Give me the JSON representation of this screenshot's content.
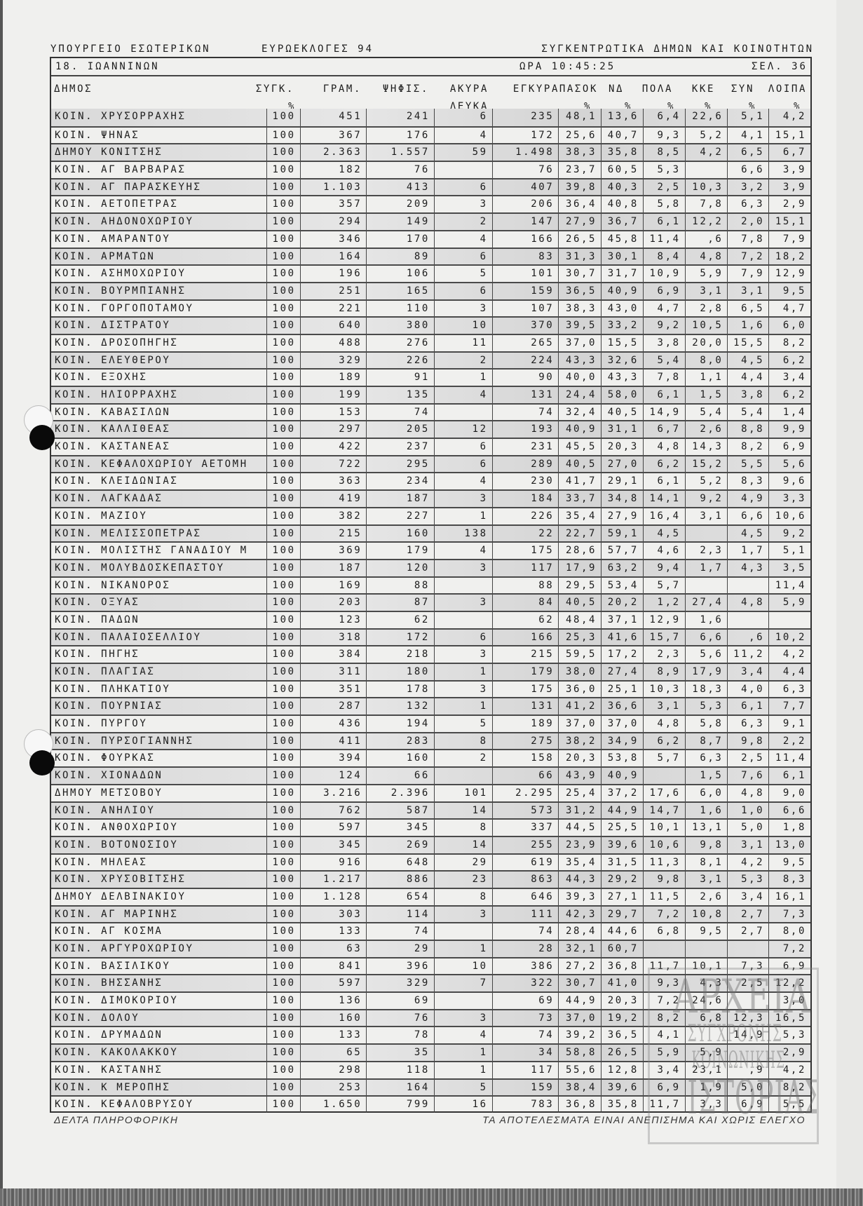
{
  "header": {
    "ministry": "ΥΠΟΥΡΓΕΙΟ ΕΣΩΤΕΡΙΚΩΝ",
    "election": "ΕΥΡΩΕΚΛΟΓΕΣ 94",
    "report": "ΣΥΓΚΕΝΤΡΩΤΙΚΑ ΔΗΜΩΝ ΚΑΙ ΚΟΙΝΟΤΗΤΩΝ"
  },
  "title_row": {
    "prefecture": "18.  ΙΩΑΝΝΙΝΩΝ",
    "time": "ΩΡΑ 10:45:25",
    "page": "ΣΕΛ.  36"
  },
  "columns": {
    "dimos": "ΔΗΜΟΣ",
    "sygk": "ΣΥΓΚ.",
    "sygk_unit": "%",
    "gram": "ΓΡΑΜ.",
    "psifis": "ΨΗΦΙΣ.",
    "akyra": "ΑΚΥΡΑ",
    "akyra_2": "ΛΕΥΚΑ",
    "egkyra": "ΕΓΚΥΡΑ",
    "pasok": "ΠΑΣΟΚ",
    "pasok_unit": "%",
    "nd": "ΝΔ",
    "nd_unit": "%",
    "pola": "ΠΟΛΑ",
    "pola_unit": "%",
    "kke": "ΚΚΕ",
    "kke_unit": "%",
    "syn": "ΣΥΝ",
    "syn_unit": "%",
    "loipa": "ΛΟΙΠΑ",
    "loipa_unit": "%"
  },
  "rows": [
    [
      "ΚΟΙΝ. ΧΡΥΣΟΡΡΑΧΗΣ",
      "100",
      "451",
      "241",
      "6",
      "235",
      "48,1",
      "13,6",
      "6,4",
      "22,6",
      "5,1",
      "4,2"
    ],
    [
      "ΚΟΙΝ. ΨΗΝΑΣ",
      "100",
      "367",
      "176",
      "4",
      "172",
      "25,6",
      "40,7",
      "9,3",
      "5,2",
      "4,1",
      "15,1"
    ],
    [
      "ΔΗΜΟΥ ΚΟΝΙΤΣΗΣ",
      "100",
      "2.363",
      "1.557",
      "59",
      "1.498",
      "38,3",
      "35,8",
      "8,5",
      "4,2",
      "6,5",
      "6,7"
    ],
    [
      "ΚΟΙΝ. ΑΓ ΒΑΡΒΑΡΑΣ",
      "100",
      "182",
      "76",
      "",
      "76",
      "23,7",
      "60,5",
      "5,3",
      "",
      "6,6",
      "3,9"
    ],
    [
      "ΚΟΙΝ. ΑΓ ΠΑΡΑΣΚΕΥΗΣ",
      "100",
      "1.103",
      "413",
      "6",
      "407",
      "39,8",
      "40,3",
      "2,5",
      "10,3",
      "3,2",
      "3,9"
    ],
    [
      "ΚΟΙΝ. ΑΕΤΟΠΕΤΡΑΣ",
      "100",
      "357",
      "209",
      "3",
      "206",
      "36,4",
      "40,8",
      "5,8",
      "7,8",
      "6,3",
      "2,9"
    ],
    [
      "ΚΟΙΝ. ΑΗΔΟΝΟΧΩΡΙΟΥ",
      "100",
      "294",
      "149",
      "2",
      "147",
      "27,9",
      "36,7",
      "6,1",
      "12,2",
      "2,0",
      "15,1"
    ],
    [
      "ΚΟΙΝ. ΑΜΑΡΑΝΤΟΥ",
      "100",
      "346",
      "170",
      "4",
      "166",
      "26,5",
      "45,8",
      "11,4",
      ",6",
      "7,8",
      "7,9"
    ],
    [
      "ΚΟΙΝ. ΑΡΜΑΤΩΝ",
      "100",
      "164",
      "89",
      "6",
      "83",
      "31,3",
      "30,1",
      "8,4",
      "4,8",
      "7,2",
      "18,2"
    ],
    [
      "ΚΟΙΝ. ΑΣΗΜΟΧΩΡΙΟΥ",
      "100",
      "196",
      "106",
      "5",
      "101",
      "30,7",
      "31,7",
      "10,9",
      "5,9",
      "7,9",
      "12,9"
    ],
    [
      "ΚΟΙΝ. ΒΟΥΡΜΠΙΑΝΗΣ",
      "100",
      "251",
      "165",
      "6",
      "159",
      "36,5",
      "40,9",
      "6,9",
      "3,1",
      "3,1",
      "9,5"
    ],
    [
      "ΚΟΙΝ. ΓΟΡΓΟΠΟΤΑΜΟΥ",
      "100",
      "221",
      "110",
      "3",
      "107",
      "38,3",
      "43,0",
      "4,7",
      "2,8",
      "6,5",
      "4,7"
    ],
    [
      "ΚΟΙΝ. ΔΙΣΤΡΑΤΟΥ",
      "100",
      "640",
      "380",
      "10",
      "370",
      "39,5",
      "33,2",
      "9,2",
      "10,5",
      "1,6",
      "6,0"
    ],
    [
      "ΚΟΙΝ. ΔΡΟΣΟΠΗΓΗΣ",
      "100",
      "488",
      "276",
      "11",
      "265",
      "37,0",
      "15,5",
      "3,8",
      "20,0",
      "15,5",
      "8,2"
    ],
    [
      "ΚΟΙΝ. ΕΛΕΥΘΕΡΟΥ",
      "100",
      "329",
      "226",
      "2",
      "224",
      "43,3",
      "32,6",
      "5,4",
      "8,0",
      "4,5",
      "6,2"
    ],
    [
      "ΚΟΙΝ. ΕΞΟΧΗΣ",
      "100",
      "189",
      "91",
      "1",
      "90",
      "40,0",
      "43,3",
      "7,8",
      "1,1",
      "4,4",
      "3,4"
    ],
    [
      "ΚΟΙΝ. ΗΛΙΟΡΡΑΧΗΣ",
      "100",
      "199",
      "135",
      "4",
      "131",
      "24,4",
      "58,0",
      "6,1",
      "1,5",
      "3,8",
      "6,2"
    ],
    [
      "ΚΟΙΝ. ΚΑΒΑΣΙΛΩΝ",
      "100",
      "153",
      "74",
      "",
      "74",
      "32,4",
      "40,5",
      "14,9",
      "5,4",
      "5,4",
      "1,4"
    ],
    [
      "ΚΟΙΝ. ΚΑΛΛΙΘΕΑΣ",
      "100",
      "297",
      "205",
      "12",
      "193",
      "40,9",
      "31,1",
      "6,7",
      "2,6",
      "8,8",
      "9,9"
    ],
    [
      "ΚΟΙΝ. ΚΑΣΤΑΝΕΑΣ",
      "100",
      "422",
      "237",
      "6",
      "231",
      "45,5",
      "20,3",
      "4,8",
      "14,3",
      "8,2",
      "6,9"
    ],
    [
      "ΚΟΙΝ. ΚΕΦΑΛΟΧΩΡΙΟΥ ΑΕΤΟΜΗ",
      "100",
      "722",
      "295",
      "6",
      "289",
      "40,5",
      "27,0",
      "6,2",
      "15,2",
      "5,5",
      "5,6"
    ],
    [
      "ΚΟΙΝ. ΚΛΕΙΔΩΝΙΑΣ",
      "100",
      "363",
      "234",
      "4",
      "230",
      "41,7",
      "29,1",
      "6,1",
      "5,2",
      "8,3",
      "9,6"
    ],
    [
      "ΚΟΙΝ. ΛΑΓΚΑΔΑΣ",
      "100",
      "419",
      "187",
      "3",
      "184",
      "33,7",
      "34,8",
      "14,1",
      "9,2",
      "4,9",
      "3,3"
    ],
    [
      "ΚΟΙΝ. ΜΑΖΙΟΥ",
      "100",
      "382",
      "227",
      "1",
      "226",
      "35,4",
      "27,9",
      "16,4",
      "3,1",
      "6,6",
      "10,6"
    ],
    [
      "ΚΟΙΝ. ΜΕΛΙΣΣΟΠΕΤΡΑΣ",
      "100",
      "215",
      "160",
      "138",
      "22",
      "22,7",
      "59,1",
      "4,5",
      "",
      "4,5",
      "9,2"
    ],
    [
      "ΚΟΙΝ. ΜΟΛΙΣΤΗΣ ΓΑΝΑΔΙΟΥ Μ",
      "100",
      "369",
      "179",
      "4",
      "175",
      "28,6",
      "57,7",
      "4,6",
      "2,3",
      "1,7",
      "5,1"
    ],
    [
      "ΚΟΙΝ. ΜΟΛΥΒΔΟΣΚΕΠΑΣΤΟΥ",
      "100",
      "187",
      "120",
      "3",
      "117",
      "17,9",
      "63,2",
      "9,4",
      "1,7",
      "4,3",
      "3,5"
    ],
    [
      "ΚΟΙΝ. ΝΙΚΑΝΟΡΟΣ",
      "100",
      "169",
      "88",
      "",
      "88",
      "29,5",
      "53,4",
      "5,7",
      "",
      "",
      "11,4"
    ],
    [
      "ΚΟΙΝ. ΟΞΥΑΣ",
      "100",
      "203",
      "87",
      "3",
      "84",
      "40,5",
      "20,2",
      "1,2",
      "27,4",
      "4,8",
      "5,9"
    ],
    [
      "ΚΟΙΝ. ΠΑΔΩΝ",
      "100",
      "123",
      "62",
      "",
      "62",
      "48,4",
      "37,1",
      "12,9",
      "1,6",
      "",
      ""
    ],
    [
      "ΚΟΙΝ. ΠΑΛΑΙΟΣΕΛΛΙΟΥ",
      "100",
      "318",
      "172",
      "6",
      "166",
      "25,3",
      "41,6",
      "15,7",
      "6,6",
      ",6",
      "10,2"
    ],
    [
      "ΚΟΙΝ. ΠΗΓΗΣ",
      "100",
      "384",
      "218",
      "3",
      "215",
      "59,5",
      "17,2",
      "2,3",
      "5,6",
      "11,2",
      "4,2"
    ],
    [
      "ΚΟΙΝ. ΠΛΑΓΙΑΣ",
      "100",
      "311",
      "180",
      "1",
      "179",
      "38,0",
      "27,4",
      "8,9",
      "17,9",
      "3,4",
      "4,4"
    ],
    [
      "ΚΟΙΝ. ΠΛΗΚΑΤΙΟΥ",
      "100",
      "351",
      "178",
      "3",
      "175",
      "36,0",
      "25,1",
      "10,3",
      "18,3",
      "4,0",
      "6,3"
    ],
    [
      "ΚΟΙΝ. ΠΟΥΡΝΙΑΣ",
      "100",
      "287",
      "132",
      "1",
      "131",
      "41,2",
      "36,6",
      "3,1",
      "5,3",
      "6,1",
      "7,7"
    ],
    [
      "ΚΟΙΝ. ΠΥΡΓΟΥ",
      "100",
      "436",
      "194",
      "5",
      "189",
      "37,0",
      "37,0",
      "4,8",
      "5,8",
      "6,3",
      "9,1"
    ],
    [
      "ΚΟΙΝ. ΠΥΡΣΟΓΙΑΝΝΗΣ",
      "100",
      "411",
      "283",
      "8",
      "275",
      "38,2",
      "34,9",
      "6,2",
      "8,7",
      "9,8",
      "2,2"
    ],
    [
      "ΚΟΙΝ. ΦΟΥΡΚΑΣ",
      "100",
      "394",
      "160",
      "2",
      "158",
      "20,3",
      "53,8",
      "5,7",
      "6,3",
      "2,5",
      "11,4"
    ],
    [
      "ΚΟΙΝ. ΧΙΟΝΑΔΩΝ",
      "100",
      "124",
      "66",
      "",
      "66",
      "43,9",
      "40,9",
      "",
      "1,5",
      "7,6",
      "6,1"
    ],
    [
      "ΔΗΜΟΥ ΜΕΤΣΟΒΟΥ",
      "100",
      "3.216",
      "2.396",
      "101",
      "2.295",
      "25,4",
      "37,2",
      "17,6",
      "6,0",
      "4,8",
      "9,0"
    ],
    [
      "ΚΟΙΝ. ΑΝΗΛΙΟΥ",
      "100",
      "762",
      "587",
      "14",
      "573",
      "31,2",
      "44,9",
      "14,7",
      "1,6",
      "1,0",
      "6,6"
    ],
    [
      "ΚΟΙΝ. ΑΝΘΟΧΩΡΙΟΥ",
      "100",
      "597",
      "345",
      "8",
      "337",
      "44,5",
      "25,5",
      "10,1",
      "13,1",
      "5,0",
      "1,8"
    ],
    [
      "ΚΟΙΝ. ΒΟΤΟΝΟΣΙΟΥ",
      "100",
      "345",
      "269",
      "14",
      "255",
      "23,9",
      "39,6",
      "10,6",
      "9,8",
      "3,1",
      "13,0"
    ],
    [
      "ΚΟΙΝ. ΜΗΛΕΑΣ",
      "100",
      "916",
      "648",
      "29",
      "619",
      "35,4",
      "31,5",
      "11,3",
      "8,1",
      "4,2",
      "9,5"
    ],
    [
      "ΚΟΙΝ. ΧΡΥΣΟΒΙΤΣΗΣ",
      "100",
      "1.217",
      "886",
      "23",
      "863",
      "44,3",
      "29,2",
      "9,8",
      "3,1",
      "5,3",
      "8,3"
    ],
    [
      "ΔΗΜΟΥ ΔΕΛΒΙΝΑΚΙΟΥ",
      "100",
      "1.128",
      "654",
      "8",
      "646",
      "39,3",
      "27,1",
      "11,5",
      "2,6",
      "3,4",
      "16,1"
    ],
    [
      "ΚΟΙΝ. ΑΓ ΜΑΡΙΝΗΣ",
      "100",
      "303",
      "114",
      "3",
      "111",
      "42,3",
      "29,7",
      "7,2",
      "10,8",
      "2,7",
      "7,3"
    ],
    [
      "ΚΟΙΝ. ΑΓ ΚΟΣΜΑ",
      "100",
      "133",
      "74",
      "",
      "74",
      "28,4",
      "44,6",
      "6,8",
      "9,5",
      "2,7",
      "8,0"
    ],
    [
      "ΚΟΙΝ. ΑΡΓΥΡΟΧΩΡΙΟΥ",
      "100",
      "63",
      "29",
      "1",
      "28",
      "32,1",
      "60,7",
      "",
      "",
      "",
      "7,2"
    ],
    [
      "ΚΟΙΝ. ΒΑΣΙΛΙΚΟΥ",
      "100",
      "841",
      "396",
      "10",
      "386",
      "27,2",
      "36,8",
      "11,7",
      "10,1",
      "7,3",
      "6,9"
    ],
    [
      "ΚΟΙΝ. ΒΗΣΣΑΝΗΣ",
      "100",
      "597",
      "329",
      "7",
      "322",
      "30,7",
      "41,0",
      "9,3",
      "4,3",
      "2,5",
      "12,2"
    ],
    [
      "ΚΟΙΝ. ΔΙΜΟΚΟΡΙΟΥ",
      "100",
      "136",
      "69",
      "",
      "69",
      "44,9",
      "20,3",
      "7,2",
      "24,6",
      "",
      "3,0"
    ],
    [
      "ΚΟΙΝ. ΔΟΛΟΥ",
      "100",
      "160",
      "76",
      "3",
      "73",
      "37,0",
      "19,2",
      "8,2",
      "6,8",
      "12,3",
      "16,5"
    ],
    [
      "ΚΟΙΝ. ΔΡΥΜΑΔΩΝ",
      "100",
      "133",
      "78",
      "4",
      "74",
      "39,2",
      "36,5",
      "4,1",
      "",
      "14,9",
      "5,3"
    ],
    [
      "ΚΟΙΝ. ΚΑΚΟΛΑΚΚΟΥ",
      "100",
      "65",
      "35",
      "1",
      "34",
      "58,8",
      "26,5",
      "5,9",
      "5,9",
      "",
      "2,9"
    ],
    [
      "ΚΟΙΝ. ΚΑΣΤΑΝΗΣ",
      "100",
      "298",
      "118",
      "1",
      "117",
      "55,6",
      "12,8",
      "3,4",
      "23,1",
      ",9",
      "4,2"
    ],
    [
      "ΚΟΙΝ. Κ ΜΕΡΟΠΗΣ",
      "100",
      "253",
      "164",
      "5",
      "159",
      "38,4",
      "39,6",
      "6,9",
      "1,9",
      "5,0",
      "8,2"
    ],
    [
      "ΚΟΙΝ. ΚΕΦΑΛΟΒΡΥΣΟΥ",
      "100",
      "1.650",
      "799",
      "16",
      "783",
      "36,8",
      "35,8",
      "11,7",
      "3,3",
      "6,9",
      "5,5"
    ]
  ],
  "footer": {
    "left": "ΔΕΛΤΑ ΠΛΗΡΟΦΟΡΙΚΗ",
    "right": "ΤΑ ΑΠΟΤΕΛΕΣΜΑΤΑ ΕΙΝΑΙ ΑΝΕΠΙΣΗΜΑ ΚΑΙ ΧΩΡΙΣ ΕΛΕΓΧΟ"
  },
  "watermark": {
    "lines": [
      "ΑΡΧΕΙΑ",
      "ΣΥΓΧΡΟΝΗΣ",
      "ΚΟΙΝΩΝΙΚΗΣ",
      "ΙΣΤΟΡΙΑΣ"
    ]
  }
}
